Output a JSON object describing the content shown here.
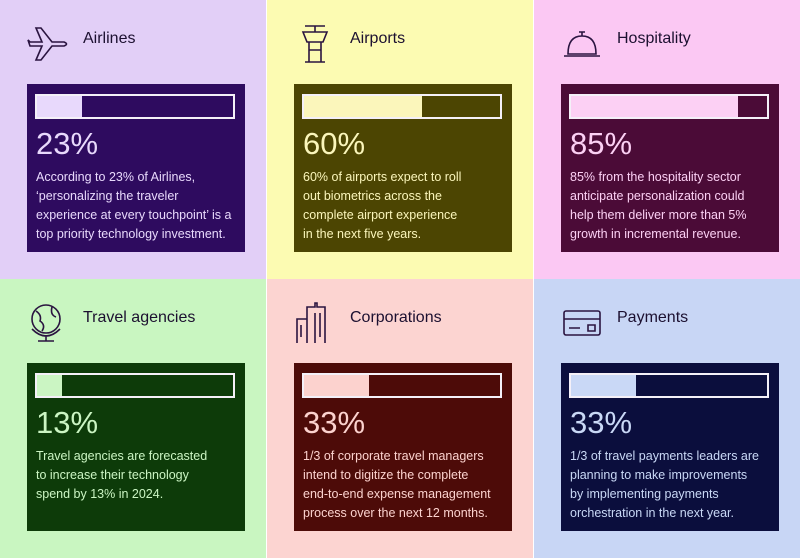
{
  "scale_max": 100,
  "panels": [
    {
      "title": "Airlines",
      "value": 23,
      "value_label": "23%",
      "bg": "#e2cff7",
      "card": "#2e0b5f",
      "accent": "#e8d9fc",
      "icon": "plane",
      "description": [
        "According to 23% of Airlines,",
        "‘personalizing the traveler",
        "experience at every touchpoint’ is a",
        "top priority technology investment."
      ]
    },
    {
      "title": "Airports",
      "value": 60,
      "value_label": "60%",
      "bg": "#fcfbb2",
      "card": "#4c4502",
      "accent": "#fbf6bb",
      "icon": "tower",
      "description": [
        "60% of airports expect to roll",
        "out biometrics across the",
        "complete airport experience",
        "in the next five years."
      ]
    },
    {
      "title": "Hospitality",
      "value": 85,
      "value_label": "85%",
      "bg": "#fbc8f3",
      "card": "#4b0b37",
      "accent": "#fcd0f4",
      "icon": "bell",
      "description": [
        "85% from the hospitality sector",
        "anticipate personalization could",
        "help them deliver more than 5%",
        "growth in incremental revenue."
      ]
    },
    {
      "title": "Travel agencies",
      "value": 13,
      "value_label": "13%",
      "bg": "#c9f6c1",
      "card": "#0d3b09",
      "accent": "#cbf5c3",
      "icon": "globe",
      "description": [
        "Travel agencies are forecasted",
        "to increase their technology",
        "spend by 13% in 2024."
      ]
    },
    {
      "title": "Corporations",
      "value": 33,
      "value_label": "33%",
      "bg": "#fcd4d1",
      "card": "#4d0b08",
      "accent": "#fcd2ce",
      "icon": "building",
      "description": [
        "1/3 of corporate travel managers",
        "intend to digitize the complete",
        "end-to-end expense management",
        "process over the next 12 months."
      ]
    },
    {
      "title": "Payments",
      "value": 33,
      "value_label": "33%",
      "bg": "#c8d6f5",
      "card": "#0b0e3d",
      "accent": "#c9d8f6",
      "icon": "card",
      "description": [
        "1/3 of travel payments leaders are",
        "planning to make improvements",
        "by implementing payments",
        "orchestration in the next year."
      ]
    }
  ]
}
